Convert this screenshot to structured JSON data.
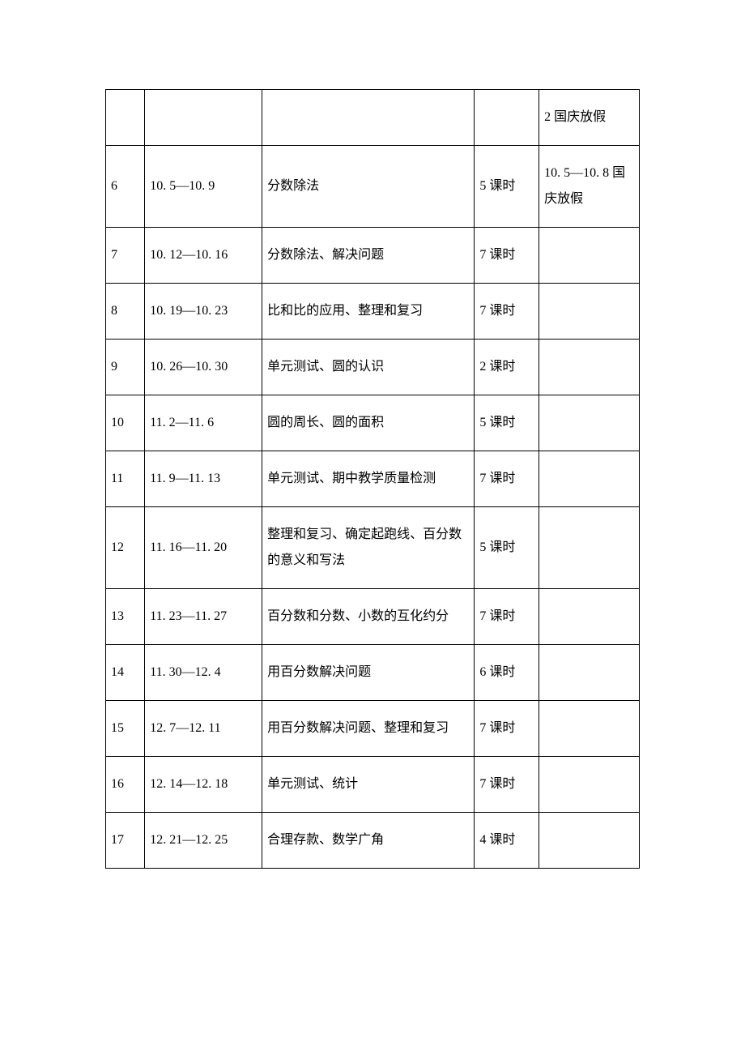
{
  "table": {
    "columns": {
      "col1_width": 46,
      "col2_width": 138,
      "col3_width": 250,
      "col4_width": 76,
      "col5_width": 118
    },
    "rows": [
      {
        "week": "",
        "dates": "",
        "content": "",
        "hours": "",
        "note": "2 国庆放假"
      },
      {
        "week": "6",
        "dates": "10. 5—10. 9",
        "content": "分数除法",
        "hours": "5 课时",
        "note": "10. 5—10. 8 国庆放假"
      },
      {
        "week": "7",
        "dates": "10. 12—10. 16",
        "content": "分数除法、解决问题",
        "hours": "7 课时",
        "note": ""
      },
      {
        "week": "8",
        "dates": "10. 19—10. 23",
        "content": "比和比的应用、整理和复习",
        "hours": "7 课时",
        "note": ""
      },
      {
        "week": "9",
        "dates": "10. 26—10. 30",
        "content": "单元测试、圆的认识",
        "hours": "2 课时",
        "note": ""
      },
      {
        "week": "10",
        "dates": "11. 2—11. 6",
        "content": "圆的周长、圆的面积",
        "hours": "5 课时",
        "note": ""
      },
      {
        "week": "11",
        "dates": "11. 9—11. 13",
        "content": "单元测试、期中教学质量检测",
        "hours": "7 课时",
        "note": ""
      },
      {
        "week": "12",
        "dates": "11. 16—11. 20",
        "content": "整理和复习、确定起跑线、百分数的意义和写法",
        "hours": "5 课时",
        "note": ""
      },
      {
        "week": "13",
        "dates": "11. 23—11. 27",
        "content": "百分数和分数、小数的互化约分",
        "hours": "7 课时",
        "note": ""
      },
      {
        "week": "14",
        "dates": "11. 30—12. 4",
        "content": "用百分数解决问题",
        "hours": "6 课时",
        "note": ""
      },
      {
        "week": "15",
        "dates": "12. 7—12. 11",
        "content": "用百分数解决问题、整理和复习",
        "hours": "7 课时",
        "note": ""
      },
      {
        "week": "16",
        "dates": "12. 14—12. 18",
        "content": "单元测试、统计",
        "hours": "7 课时",
        "note": ""
      },
      {
        "week": "17",
        "dates": "12. 21—12. 25",
        "content": "合理存款、数学广角",
        "hours": "4 课时",
        "note": ""
      }
    ]
  },
  "style": {
    "font_family": "SimSun",
    "font_size": 16,
    "line_height": 2.0,
    "border_color": "#000000",
    "text_color": "#000000",
    "background_color": "#ffffff"
  }
}
